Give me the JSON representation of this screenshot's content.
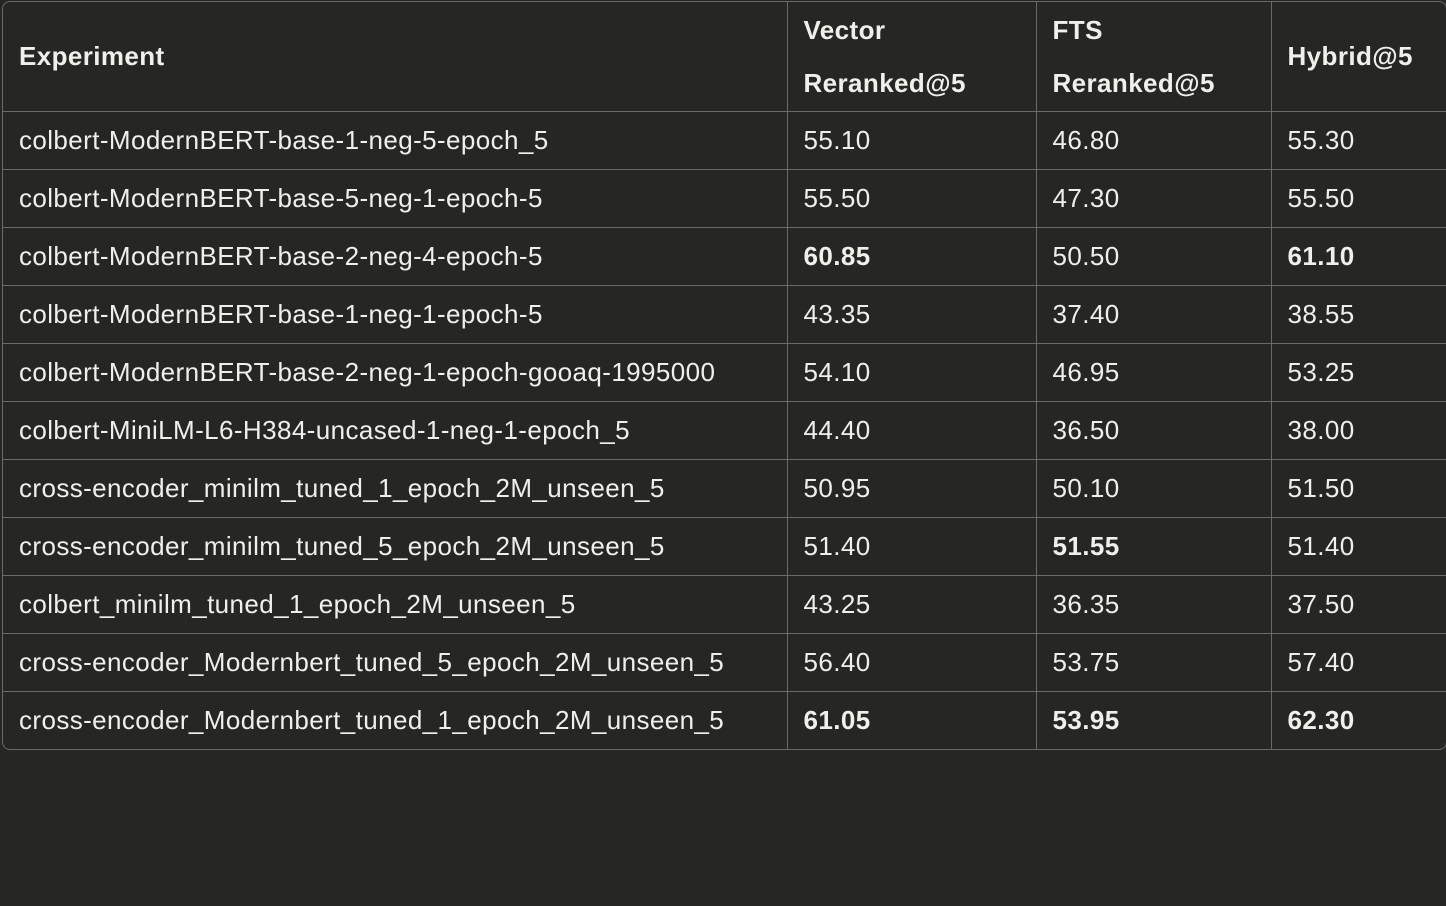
{
  "headers": [
    "Experiment",
    "Vector Reranked@5",
    "FTS Reranked@5",
    "Hybrid@5"
  ],
  "rows": [
    {
      "experiment": "colbert-ModernBERT-base-1-neg-5-epoch_5",
      "vector": "55.10",
      "fts": "46.80",
      "hybrid": "55.30",
      "bold": []
    },
    {
      "experiment": "colbert-ModernBERT-base-5-neg-1-epoch-5",
      "vector": "55.50",
      "fts": "47.30",
      "hybrid": "55.50",
      "bold": []
    },
    {
      "experiment": "colbert-ModernBERT-base-2-neg-4-epoch-5",
      "vector": "60.85",
      "fts": "50.50",
      "hybrid": "61.10",
      "bold": [
        "vector",
        "hybrid"
      ]
    },
    {
      "experiment": "colbert-ModernBERT-base-1-neg-1-epoch-5",
      "vector": "43.35",
      "fts": "37.40",
      "hybrid": "38.55",
      "bold": []
    },
    {
      "experiment": "colbert-ModernBERT-base-2-neg-1-epoch-gooaq-1995000",
      "vector": "54.10",
      "fts": "46.95",
      "hybrid": "53.25",
      "bold": []
    },
    {
      "experiment": "colbert-MiniLM-L6-H384-uncased-1-neg-1-epoch_5",
      "vector": "44.40",
      "fts": "36.50",
      "hybrid": "38.00",
      "bold": []
    },
    {
      "experiment": "cross-encoder_minilm_tuned_1_epoch_2M_unseen_5",
      "vector": "50.95",
      "fts": "50.10",
      "hybrid": "51.50",
      "bold": []
    },
    {
      "experiment": "cross-encoder_minilm_tuned_5_epoch_2M_unseen_5",
      "vector": "51.40",
      "fts": "51.55",
      "hybrid": "51.40",
      "bold": [
        "fts"
      ]
    },
    {
      "experiment": "colbert_minilm_tuned_1_epoch_2M_unseen_5",
      "vector": "43.25",
      "fts": "36.35",
      "hybrid": "37.50",
      "bold": []
    },
    {
      "experiment": "cross-encoder_Modernbert_tuned_5_epoch_2M_unseen_5",
      "vector": "56.40",
      "fts": "53.75",
      "hybrid": "57.40",
      "bold": []
    },
    {
      "experiment": "cross-encoder_Modernbert_tuned_1_epoch_2M_unseen_5",
      "vector": "61.05",
      "fts": "53.95",
      "hybrid": "62.30",
      "bold": [
        "vector",
        "fts",
        "hybrid"
      ]
    }
  ]
}
